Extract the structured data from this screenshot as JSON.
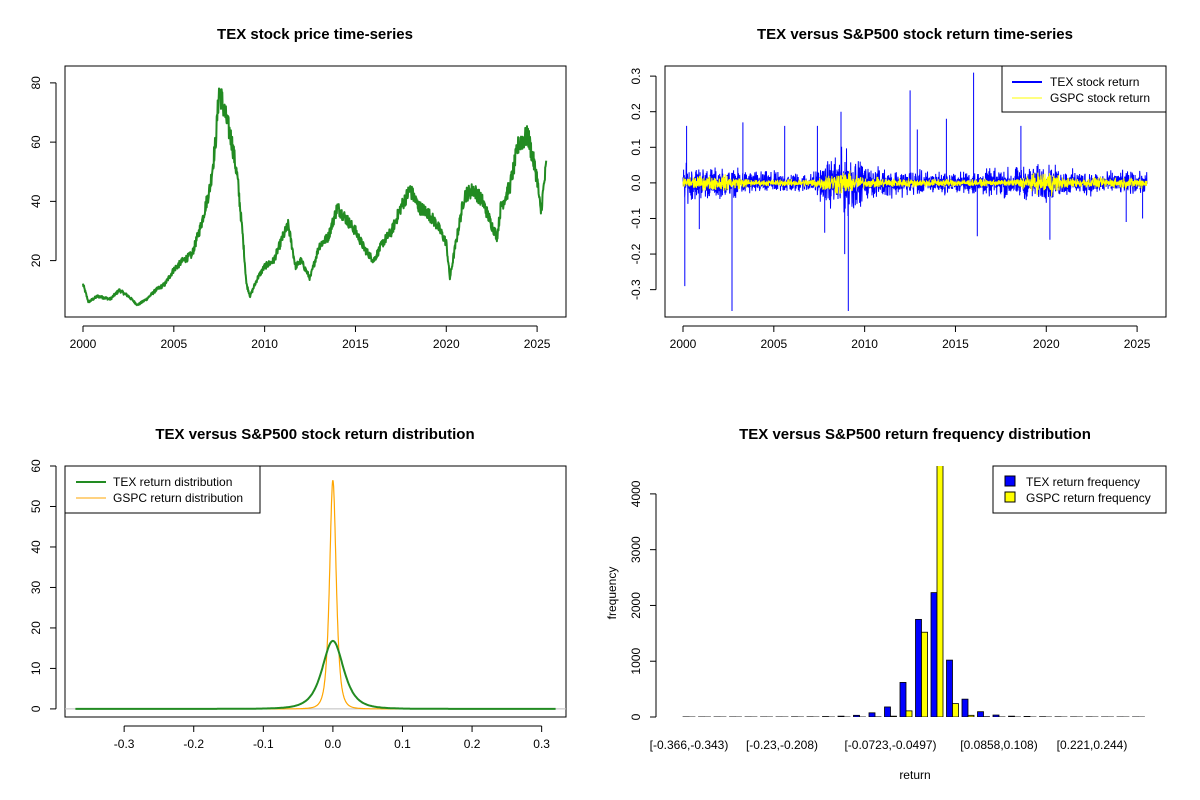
{
  "colors": {
    "price": "#228B22",
    "tex": "#0000FF",
    "gspc": "#FFFF00",
    "tex_density": "#228B22",
    "gspc_density": "#FFA500",
    "baseline": "#BEBEBE"
  },
  "chart_data": [
    {
      "id": "price",
      "type": "line",
      "title": "TEX stock price time-series",
      "xlabel": "",
      "ylabel": "",
      "xlim": [
        2000,
        2025.6
      ],
      "ylim": [
        4,
        83
      ],
      "xticks": [
        2000,
        2005,
        2010,
        2015,
        2020,
        2025
      ],
      "xtick_labels": [
        "2000",
        "2005",
        "2010",
        "2015",
        "2020",
        "2025"
      ],
      "yticks": [
        20,
        40,
        60,
        80
      ],
      "ytick_labels": [
        "20",
        "40",
        "60",
        "80"
      ],
      "series": [
        {
          "name": "TEX price",
          "x": [
            2000.0,
            2000.3,
            2000.8,
            2001.5,
            2002.0,
            2002.5,
            2003.0,
            2003.5,
            2004.0,
            2004.5,
            2005.0,
            2005.5,
            2006.0,
            2006.5,
            2007.0,
            2007.3,
            2007.5,
            2007.8,
            2008.2,
            2008.5,
            2008.8,
            2009.0,
            2009.2,
            2009.6,
            2010.0,
            2010.5,
            2011.0,
            2011.3,
            2011.7,
            2012.0,
            2012.5,
            2013.0,
            2013.5,
            2014.0,
            2014.5,
            2015.0,
            2015.5,
            2016.0,
            2016.5,
            2017.0,
            2017.5,
            2018.0,
            2018.5,
            2019.0,
            2019.5,
            2020.0,
            2020.2,
            2020.5,
            2021.0,
            2021.5,
            2022.0,
            2022.5,
            2022.8,
            2023.0,
            2023.5,
            2024.0,
            2024.5,
            2025.0,
            2025.2,
            2025.5
          ],
          "y": [
            12,
            6,
            8,
            7,
            10,
            8,
            5,
            7,
            10,
            12,
            17,
            20,
            22,
            32,
            45,
            60,
            78,
            70,
            60,
            48,
            28,
            12,
            8,
            14,
            18,
            20,
            28,
            32,
            18,
            20,
            14,
            25,
            28,
            38,
            34,
            30,
            24,
            20,
            26,
            30,
            38,
            44,
            38,
            36,
            32,
            26,
            14,
            25,
            42,
            44,
            40,
            32,
            28,
            38,
            45,
            60,
            62,
            48,
            36,
            52
          ]
        }
      ]
    },
    {
      "id": "returns",
      "type": "line",
      "title": "TEX versus S&P500 stock return time-series",
      "xlabel": "",
      "ylabel": "",
      "xlim": [
        2000,
        2025.6
      ],
      "ylim": [
        -0.36,
        0.32
      ],
      "xticks": [
        2000,
        2005,
        2010,
        2015,
        2020,
        2025
      ],
      "xtick_labels": [
        "2000",
        "2005",
        "2010",
        "2015",
        "2020",
        "2025"
      ],
      "yticks": [
        -0.3,
        -0.2,
        -0.1,
        0.0,
        0.1,
        0.2,
        0.3
      ],
      "ytick_labels": [
        "-0.3",
        "-0.2",
        "-0.1",
        "0.0",
        "0.1",
        "0.2",
        "0.3"
      ],
      "legend_position": "top-right",
      "series": [
        {
          "name": "TEX stock return",
          "amplitude_envelope": {
            "x": [
              2000,
              2003,
              2007,
              2008.7,
              2009.3,
              2010,
              2012,
              2015,
              2020,
              2021,
              2025.5
            ],
            "amp": [
              0.07,
              0.05,
              0.035,
              0.12,
              0.12,
              0.06,
              0.05,
              0.04,
              0.07,
              0.05,
              0.04
            ]
          },
          "spikes": [
            {
              "x": 2000.1,
              "y": -0.29
            },
            {
              "x": 2000.2,
              "y": 0.16
            },
            {
              "x": 2000.9,
              "y": -0.13
            },
            {
              "x": 2002.7,
              "y": -0.36
            },
            {
              "x": 2003.3,
              "y": 0.17
            },
            {
              "x": 2005.6,
              "y": 0.16
            },
            {
              "x": 2007.4,
              "y": 0.16
            },
            {
              "x": 2007.8,
              "y": -0.14
            },
            {
              "x": 2008.7,
              "y": 0.2
            },
            {
              "x": 2008.9,
              "y": -0.2
            },
            {
              "x": 2009.1,
              "y": -0.36
            },
            {
              "x": 2012.5,
              "y": 0.26
            },
            {
              "x": 2012.9,
              "y": 0.15
            },
            {
              "x": 2014.5,
              "y": 0.18
            },
            {
              "x": 2016.0,
              "y": 0.31
            },
            {
              "x": 2016.2,
              "y": -0.15
            },
            {
              "x": 2018.6,
              "y": 0.16
            },
            {
              "x": 2020.2,
              "y": -0.16
            },
            {
              "x": 2024.4,
              "y": -0.11
            },
            {
              "x": 2025.3,
              "y": -0.1
            }
          ]
        },
        {
          "name": "GSPC stock return",
          "amplitude_envelope": {
            "x": [
              2000,
              2002.5,
              2004,
              2007,
              2008.7,
              2009.3,
              2010,
              2012,
              2018,
              2020.2,
              2021,
              2025.5
            ],
            "amp": [
              0.025,
              0.03,
              0.012,
              0.015,
              0.05,
              0.04,
              0.02,
              0.018,
              0.012,
              0.05,
              0.02,
              0.02
            ]
          }
        }
      ]
    },
    {
      "id": "density",
      "type": "line",
      "title": "TEX versus S&P500 stock return distribution",
      "xlabel": "",
      "ylabel": "",
      "xlim": [
        -0.385,
        0.335
      ],
      "ylim": [
        -2,
        60
      ],
      "xticks": [
        -0.3,
        -0.2,
        -0.1,
        0.0,
        0.1,
        0.2,
        0.3
      ],
      "xtick_labels": [
        "-0.3",
        "-0.2",
        "-0.1",
        "0.0",
        "0.1",
        "0.2",
        "0.3"
      ],
      "yticks": [
        0,
        10,
        20,
        30,
        40,
        50,
        60
      ],
      "ytick_labels": [
        "0",
        "10",
        "20",
        "30",
        "40",
        "50",
        "60"
      ],
      "legend_position": "top-left",
      "series": [
        {
          "name": "TEX return distribution",
          "peak": 16.8,
          "center": 0.0,
          "scale": 0.019,
          "x_range": [
            -0.37,
            0.32
          ]
        },
        {
          "name": "GSPC return distribution",
          "peak": 56.5,
          "center": 0.0,
          "scale": 0.0058,
          "x_range": [
            -0.13,
            0.12
          ]
        }
      ]
    },
    {
      "id": "freq",
      "type": "bar",
      "title": "TEX versus S&P500 return frequency distribution",
      "xlabel": "return",
      "ylabel": "frequency",
      "ylim": [
        0,
        4500
      ],
      "yticks": [
        0,
        1000,
        2000,
        3000,
        4000
      ],
      "ytick_labels": [
        "0",
        "1000",
        "2000",
        "3000",
        "4000"
      ],
      "xtick_labels": [
        "[-0.366,-0.343)",
        "[-0.23,-0.208)",
        "[-0.0723,-0.0497)",
        "[0.0858,0.108)",
        "[0.221,0.244)"
      ],
      "xtick_bins": [
        0,
        6,
        13,
        20,
        26
      ],
      "legend_position": "top-right",
      "bins": 30,
      "series": [
        {
          "name": "TEX return frequency",
          "values": [
            2,
            1,
            1,
            1,
            1,
            1,
            1,
            3,
            3,
            8,
            15,
            30,
            75,
            180,
            620,
            1750,
            2230,
            1020,
            320,
            95,
            35,
            15,
            10,
            5,
            3,
            2,
            2,
            1,
            1,
            1
          ]
        },
        {
          "name": "GSPC return frequency",
          "values": [
            0,
            0,
            0,
            0,
            0,
            0,
            0,
            0,
            0,
            0,
            0,
            0,
            2,
            15,
            110,
            1520,
            4600,
            240,
            30,
            5,
            1,
            0,
            0,
            0,
            0,
            0,
            0,
            0,
            0,
            0
          ]
        }
      ]
    }
  ]
}
